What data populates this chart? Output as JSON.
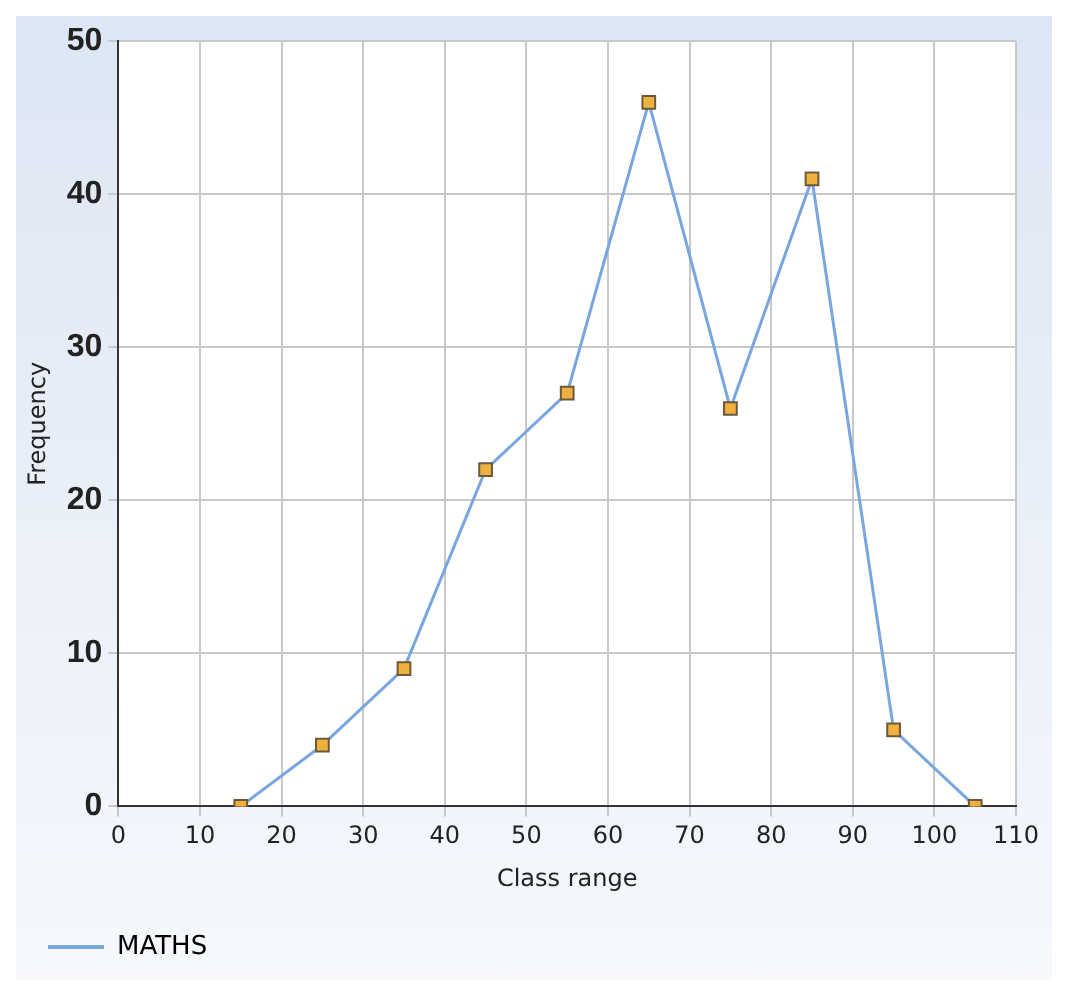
{
  "chart_data": {
    "type": "line",
    "xlabel": "Class range",
    "ylabel": "Frequency",
    "x": [
      15,
      25,
      35,
      45,
      55,
      65,
      75,
      85,
      95,
      105
    ],
    "series": [
      {
        "name": "MATHS",
        "color": "#7aa6e0",
        "values": [
          0,
          4,
          9,
          22,
          27,
          46,
          26,
          41,
          5,
          0
        ]
      }
    ],
    "xlim": [
      0,
      110
    ],
    "xticks": [
      0,
      10,
      20,
      30,
      40,
      50,
      60,
      70,
      80,
      90,
      100,
      110
    ],
    "ylim": [
      0,
      50
    ],
    "yticks": [
      0,
      10,
      20,
      30,
      40,
      50
    ],
    "grid": true,
    "legend": "bottom left",
    "marker": "square",
    "line_style": "solid"
  }
}
